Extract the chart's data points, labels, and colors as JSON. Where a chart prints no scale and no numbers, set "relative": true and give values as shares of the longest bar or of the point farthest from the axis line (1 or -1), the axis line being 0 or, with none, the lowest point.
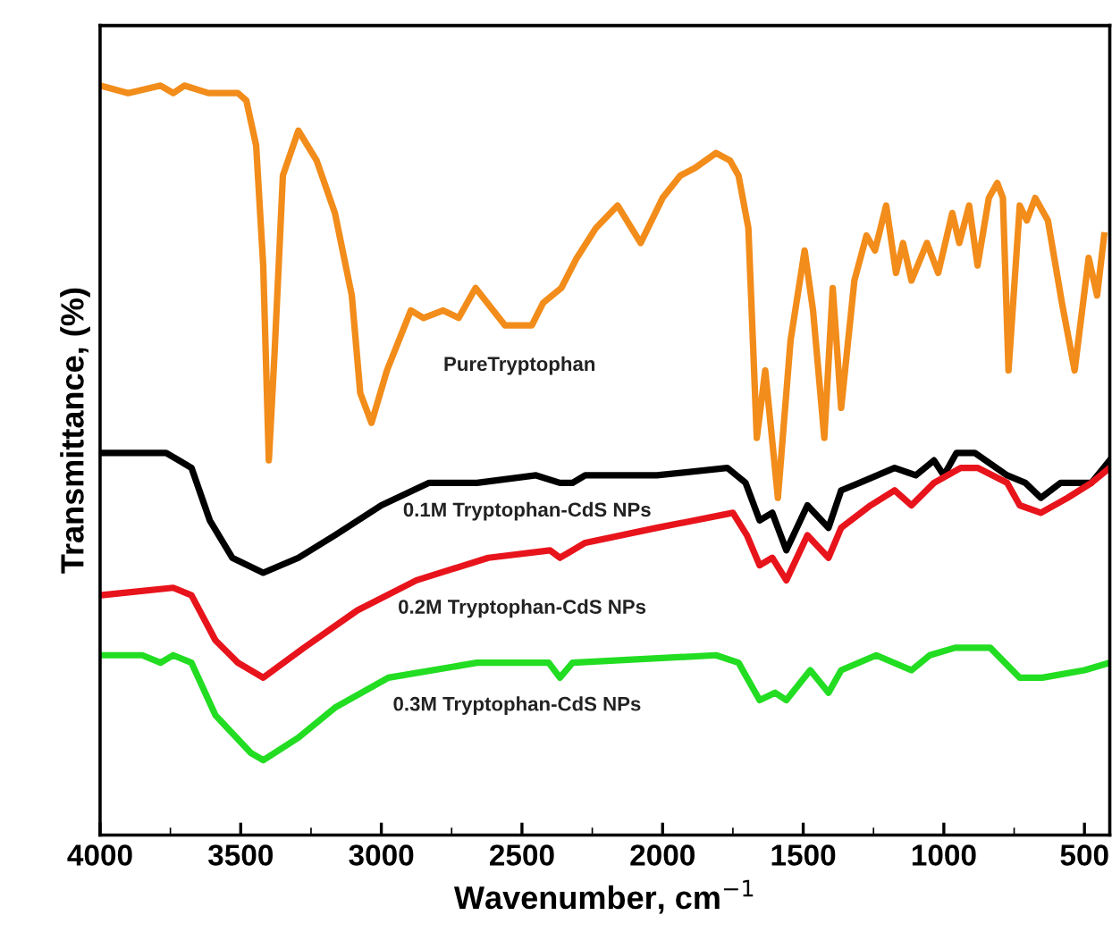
{
  "chart_data": {
    "type": "line",
    "relative": true,
    "xlabel": "Wavenumber, cm$^{−1}$",
    "ylabel": "Transmittance, (%)",
    "xlim": [
      4000,
      410
    ],
    "xticks": [
      4000,
      3500,
      3000,
      2500,
      2000,
      1500,
      1000,
      500
    ],
    "tick_labels": "x",
    "grid": false,
    "legend": false,
    "marker": "none",
    "line_style": "solid",
    "series": [
      {
        "name": "PureTryptophan",
        "color": "#f28c1a",
        "x": [
          4000,
          3900,
          3785,
          3740,
          3700,
          3615,
          3510,
          3480,
          3445,
          3420,
          3400,
          3380,
          3350,
          3295,
          3230,
          3165,
          3105,
          3075,
          3035,
          2980,
          2895,
          2850,
          2780,
          2725,
          2665,
          2560,
          2465,
          2425,
          2360,
          2305,
          2237,
          2160,
          2078,
          2000,
          1937,
          1885,
          1810,
          1760,
          1730,
          1695,
          1665,
          1635,
          1590,
          1545,
          1495,
          1465,
          1425,
          1395,
          1365,
          1318,
          1275,
          1245,
          1205,
          1170,
          1145,
          1115,
          1060,
          1020,
          970,
          945,
          910,
          880,
          840,
          810,
          790,
          770,
          730,
          705,
          675,
          630,
          580,
          535,
          485,
          455,
          430
        ],
        "values": [
          1.0,
          0.99,
          1.0,
          0.99,
          1.0,
          0.99,
          0.99,
          0.98,
          0.92,
          0.76,
          0.5,
          0.64,
          0.88,
          0.94,
          0.9,
          0.83,
          0.72,
          0.59,
          0.55,
          0.62,
          0.7,
          0.69,
          0.7,
          0.69,
          0.73,
          0.68,
          0.68,
          0.71,
          0.73,
          0.77,
          0.81,
          0.84,
          0.79,
          0.85,
          0.88,
          0.89,
          0.91,
          0.9,
          0.88,
          0.81,
          0.53,
          0.62,
          0.45,
          0.66,
          0.78,
          0.7,
          0.53,
          0.73,
          0.57,
          0.74,
          0.8,
          0.78,
          0.84,
          0.75,
          0.79,
          0.74,
          0.79,
          0.75,
          0.83,
          0.79,
          0.84,
          0.76,
          0.85,
          0.87,
          0.85,
          0.62,
          0.84,
          0.82,
          0.85,
          0.82,
          0.71,
          0.62,
          0.77,
          0.72,
          0.8
        ]
      },
      {
        "name": "0.1M Tryptophan-CdS NPs",
        "color": "#000000",
        "x": [
          4000,
          3830,
          3765,
          3720,
          3675,
          3610,
          3530,
          3420,
          3295,
          3165,
          3000,
          2830,
          2660,
          2450,
          2365,
          2320,
          2275,
          2020,
          1770,
          1705,
          1655,
          1610,
          1560,
          1485,
          1410,
          1365,
          1300,
          1175,
          1100,
          1035,
          1000,
          955,
          890,
          775,
          710,
          655,
          585,
          475,
          410
        ],
        "values": [
          0.51,
          0.51,
          0.51,
          0.5,
          0.49,
          0.42,
          0.37,
          0.35,
          0.37,
          0.4,
          0.44,
          0.47,
          0.47,
          0.48,
          0.47,
          0.47,
          0.48,
          0.48,
          0.49,
          0.47,
          0.42,
          0.43,
          0.38,
          0.44,
          0.41,
          0.46,
          0.47,
          0.49,
          0.48,
          0.5,
          0.48,
          0.51,
          0.51,
          0.48,
          0.47,
          0.45,
          0.47,
          0.47,
          0.5
        ]
      },
      {
        "name": "0.2M Tryptophan-CdS NPs",
        "color": "#e8141c",
        "x": [
          4000,
          3740,
          3675,
          3590,
          3510,
          3420,
          3275,
          3085,
          2875,
          2620,
          2400,
          2365,
          2320,
          2275,
          2020,
          1750,
          1700,
          1655,
          1610,
          1560,
          1485,
          1410,
          1365,
          1260,
          1175,
          1115,
          1035,
          940,
          880,
          775,
          730,
          655,
          560,
          475,
          410
        ],
        "values": [
          0.32,
          0.33,
          0.32,
          0.26,
          0.23,
          0.21,
          0.25,
          0.3,
          0.34,
          0.37,
          0.38,
          0.37,
          0.38,
          0.39,
          0.41,
          0.43,
          0.4,
          0.36,
          0.37,
          0.34,
          0.4,
          0.37,
          0.41,
          0.44,
          0.46,
          0.44,
          0.47,
          0.49,
          0.49,
          0.47,
          0.44,
          0.43,
          0.45,
          0.47,
          0.49
        ]
      },
      {
        "name": "0.3M Tryptophan-CdS NPs",
        "color": "#22dd22",
        "x": [
          4000,
          3850,
          3785,
          3740,
          3675,
          3590,
          3465,
          3420,
          3295,
          3165,
          2975,
          2660,
          2405,
          2365,
          2320,
          1810,
          1730,
          1655,
          1600,
          1560,
          1475,
          1410,
          1365,
          1240,
          1115,
          1050,
          960,
          835,
          730,
          650,
          500,
          410
        ],
        "values": [
          0.24,
          0.24,
          0.23,
          0.24,
          0.23,
          0.16,
          0.11,
          0.1,
          0.13,
          0.17,
          0.21,
          0.23,
          0.23,
          0.21,
          0.23,
          0.24,
          0.23,
          0.18,
          0.19,
          0.18,
          0.22,
          0.19,
          0.22,
          0.24,
          0.22,
          0.24,
          0.25,
          0.25,
          0.21,
          0.21,
          0.22,
          0.23
        ]
      }
    ]
  }
}
